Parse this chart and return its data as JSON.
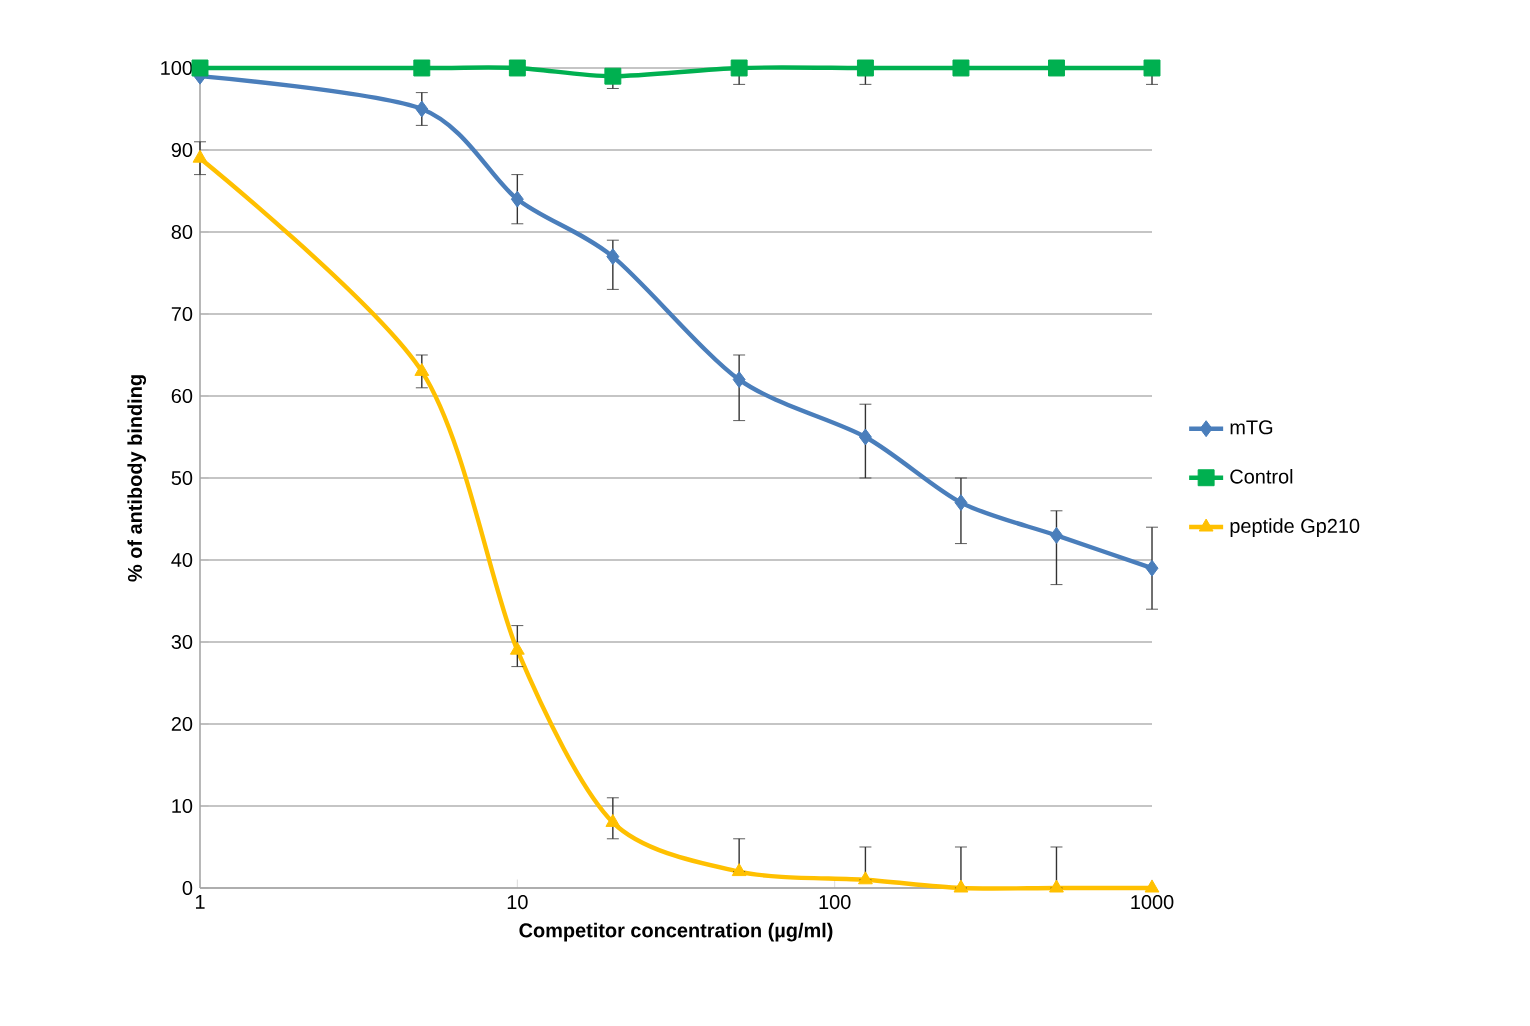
{
  "chart_data": {
    "type": "line",
    "xlabel": "Competitor concentration (µg/ml)",
    "ylabel": "% of antibody binding",
    "x": [
      1,
      5,
      10,
      20,
      50,
      125,
      250,
      500,
      1000
    ],
    "series": [
      {
        "name": "mTG",
        "color": "#4a7ebb",
        "marker": "diamond",
        "values": [
          99,
          95,
          84,
          77,
          62,
          55,
          47,
          43,
          39
        ],
        "errors": [
          null,
          [
            93,
            97
          ],
          [
            81,
            87
          ],
          [
            73,
            79
          ],
          [
            57,
            65
          ],
          [
            50,
            59
          ],
          [
            42,
            50
          ],
          [
            37,
            46
          ],
          [
            34,
            44
          ]
        ]
      },
      {
        "name": "Control",
        "color": "#00b050",
        "marker": "square",
        "values": [
          100,
          100,
          100,
          99,
          100,
          100,
          100,
          100,
          100
        ],
        "errors": [
          null,
          null,
          null,
          [
            97.5,
            99
          ],
          [
            98,
            100
          ],
          [
            98,
            100
          ],
          null,
          null,
          [
            98,
            100
          ]
        ]
      },
      {
        "name": "peptide Gp210",
        "color": "#ffc000",
        "marker": "triangle",
        "values": [
          89,
          63,
          29,
          8,
          2,
          1,
          0,
          0,
          0
        ],
        "errors": [
          [
            87,
            91
          ],
          [
            61,
            65
          ],
          [
            27,
            32
          ],
          [
            6,
            11
          ],
          [
            2,
            6
          ],
          [
            1,
            5
          ],
          [
            0,
            5
          ],
          [
            0,
            5
          ],
          null
        ]
      }
    ],
    "log": "x",
    "xlim": [
      1,
      1000
    ],
    "xticks": [
      1,
      10,
      100,
      1000
    ],
    "ylim": [
      0,
      100
    ],
    "yticks": [
      0,
      10,
      20,
      30,
      40,
      50,
      60,
      70,
      80,
      90,
      100
    ],
    "grid": "y",
    "legend": "right"
  }
}
